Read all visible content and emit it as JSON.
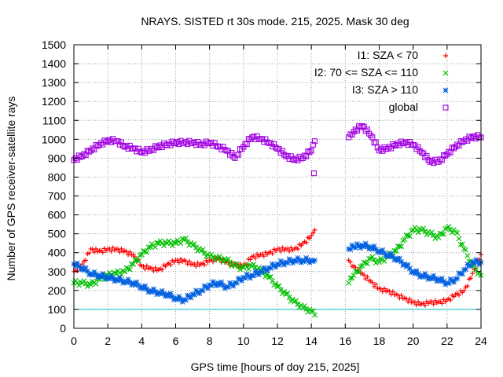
{
  "chart_data": {
    "type": "scatter",
    "title": "NRAYS. SISTED rt 30s mode. 215, 2025. Mask 30 deg",
    "xlabel": "GPS time [hours of doy 215, 2025]",
    "ylabel": "Number of GPS receiver-satellite rays",
    "xlim": [
      0,
      24
    ],
    "ylim": [
      0,
      1500
    ],
    "xticks": [
      0,
      2,
      4,
      6,
      8,
      10,
      12,
      14,
      16,
      18,
      20,
      22,
      24
    ],
    "yticks": [
      0,
      100,
      200,
      300,
      400,
      500,
      600,
      700,
      800,
      900,
      1000,
      1100,
      1200,
      1300,
      1400,
      1500
    ],
    "grid": true,
    "legend_position": "top-right",
    "threshold_line": {
      "y": 100,
      "color": "#00c0c0"
    },
    "series": [
      {
        "name": "I1: SZA < 70",
        "marker": "+",
        "color": "#ff0000",
        "x": [
          0,
          0.5,
          1,
          1.5,
          2,
          2.5,
          3,
          3.5,
          4,
          4.5,
          5,
          5.5,
          6,
          6.5,
          7,
          7.5,
          8,
          8.5,
          9,
          9.5,
          10,
          10.5,
          11,
          11.5,
          12,
          12.5,
          13,
          13.5,
          14,
          14.2,
          16.2,
          16.5,
          17,
          17.5,
          18,
          18.5,
          19,
          19.5,
          20,
          20.5,
          21,
          21.5,
          22,
          22.5,
          23,
          23.5,
          24
        ],
        "y": [
          300,
          340,
          420,
          410,
          420,
          420,
          410,
          390,
          330,
          320,
          310,
          340,
          360,
          360,
          340,
          340,
          360,
          370,
          350,
          340,
          330,
          380,
          390,
          400,
          420,
          420,
          420,
          450,
          490,
          520,
          360,
          330,
          290,
          250,
          210,
          200,
          180,
          160,
          140,
          130,
          140,
          140,
          150,
          180,
          200,
          290,
          390
        ]
      },
      {
        "name": "I2: 70 <= SZA <= 110",
        "marker": "x",
        "color": "#00c000",
        "x": [
          0,
          0.5,
          1,
          1.5,
          2,
          2.5,
          3,
          3.5,
          4,
          4.5,
          5,
          5.5,
          6,
          6.5,
          7,
          7.5,
          8,
          8.5,
          9,
          9.5,
          10,
          10.5,
          11,
          11.5,
          12,
          12.5,
          13,
          13.5,
          14,
          14.2,
          16.2,
          16.5,
          17,
          17.5,
          18,
          18.5,
          19,
          19.5,
          20,
          20.5,
          21,
          21.5,
          22,
          22.5,
          23,
          23.5,
          24
        ],
        "y": [
          240,
          240,
          230,
          260,
          280,
          290,
          300,
          340,
          390,
          430,
          450,
          450,
          450,
          470,
          440,
          410,
          380,
          370,
          360,
          330,
          320,
          330,
          310,
          270,
          220,
          180,
          140,
          110,
          90,
          70,
          240,
          280,
          330,
          370,
          350,
          380,
          410,
          470,
          520,
          520,
          500,
          480,
          530,
          510,
          420,
          330,
          280
        ]
      },
      {
        "name": "I3: SZA > 110",
        "marker": "*",
        "color": "#0060e0",
        "x": [
          0,
          0.5,
          1,
          1.5,
          2,
          2.5,
          3,
          3.5,
          4,
          4.5,
          5,
          5.5,
          6,
          6.5,
          7,
          7.5,
          8,
          8.5,
          9,
          9.5,
          10,
          10.5,
          11,
          11.5,
          12,
          12.5,
          13,
          13.5,
          14,
          14.2,
          16.2,
          16.5,
          17,
          17.5,
          18,
          18.5,
          19,
          19.5,
          20,
          20.5,
          21,
          21.5,
          22,
          22.5,
          23,
          23.5,
          24
        ],
        "y": [
          340,
          320,
          290,
          280,
          270,
          260,
          250,
          240,
          220,
          200,
          190,
          180,
          160,
          150,
          180,
          200,
          230,
          240,
          220,
          240,
          270,
          280,
          300,
          320,
          340,
          350,
          360,
          360,
          360,
          360,
          420,
          430,
          440,
          430,
          410,
          390,
          370,
          340,
          300,
          280,
          270,
          260,
          240,
          260,
          310,
          350,
          350
        ]
      },
      {
        "name": "global",
        "marker": "square",
        "color": "#a000e0",
        "x": [
          0,
          0.5,
          1,
          1.5,
          2,
          2.5,
          3,
          3.5,
          4,
          4.5,
          5,
          5.5,
          6,
          6.5,
          7,
          7.5,
          8,
          8.5,
          9,
          9.5,
          10,
          10.5,
          11,
          11.5,
          12,
          12.5,
          13,
          13.5,
          14,
          14.2,
          14.15,
          16.2,
          16.5,
          17,
          17.5,
          18,
          18.5,
          19,
          19.5,
          20,
          20.5,
          21,
          21.5,
          22,
          22.5,
          23,
          23.5,
          24
        ],
        "y": [
          890,
          910,
          940,
          970,
          990,
          990,
          960,
          950,
          930,
          940,
          960,
          970,
          980,
          980,
          980,
          970,
          980,
          960,
          940,
          900,
          960,
          1010,
          1000,
          980,
          950,
          910,
          890,
          900,
          940,
          990,
          820,
          1010,
          1040,
          1070,
          1020,
          940,
          950,
          970,
          980,
          970,
          930,
          880,
          880,
          920,
          960,
          990,
          1010,
          1010
        ]
      }
    ]
  }
}
